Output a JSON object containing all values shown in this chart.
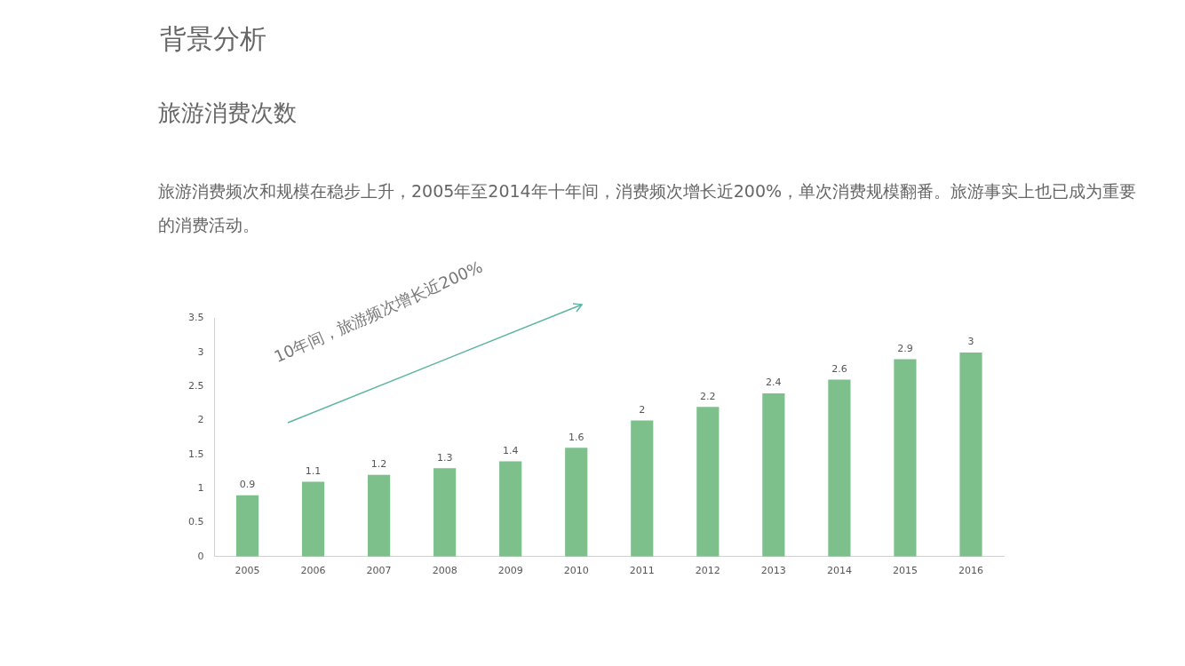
{
  "chart_data": {
    "type": "bar",
    "title": "背景分析",
    "subtitle": "旅游消费次数",
    "annotations": [
      "旅游消费频次和规模在稳步上升，2005年至2014年十年间，消费频次增长近200%，单次消费规模翻番。旅游事实上也已成为重要的消费活动。",
      "10年间，旅游频次增长近200%"
    ],
    "categories": [
      "2005",
      "2006",
      "2007",
      "2008",
      "2009",
      "2010",
      "2011",
      "2012",
      "2013",
      "2014",
      "2015",
      "2016"
    ],
    "values": [
      0.9,
      1.1,
      1.2,
      1.3,
      1.4,
      1.6,
      2,
      2.2,
      2.4,
      2.6,
      2.9,
      3
    ],
    "color": "#7dc08c",
    "ylim": [
      0,
      3.5
    ],
    "yticks": [
      0,
      0.5,
      1,
      1.5,
      2,
      2.5,
      3,
      3.5
    ],
    "grid": false,
    "legend": false,
    "data_labels": true
  }
}
